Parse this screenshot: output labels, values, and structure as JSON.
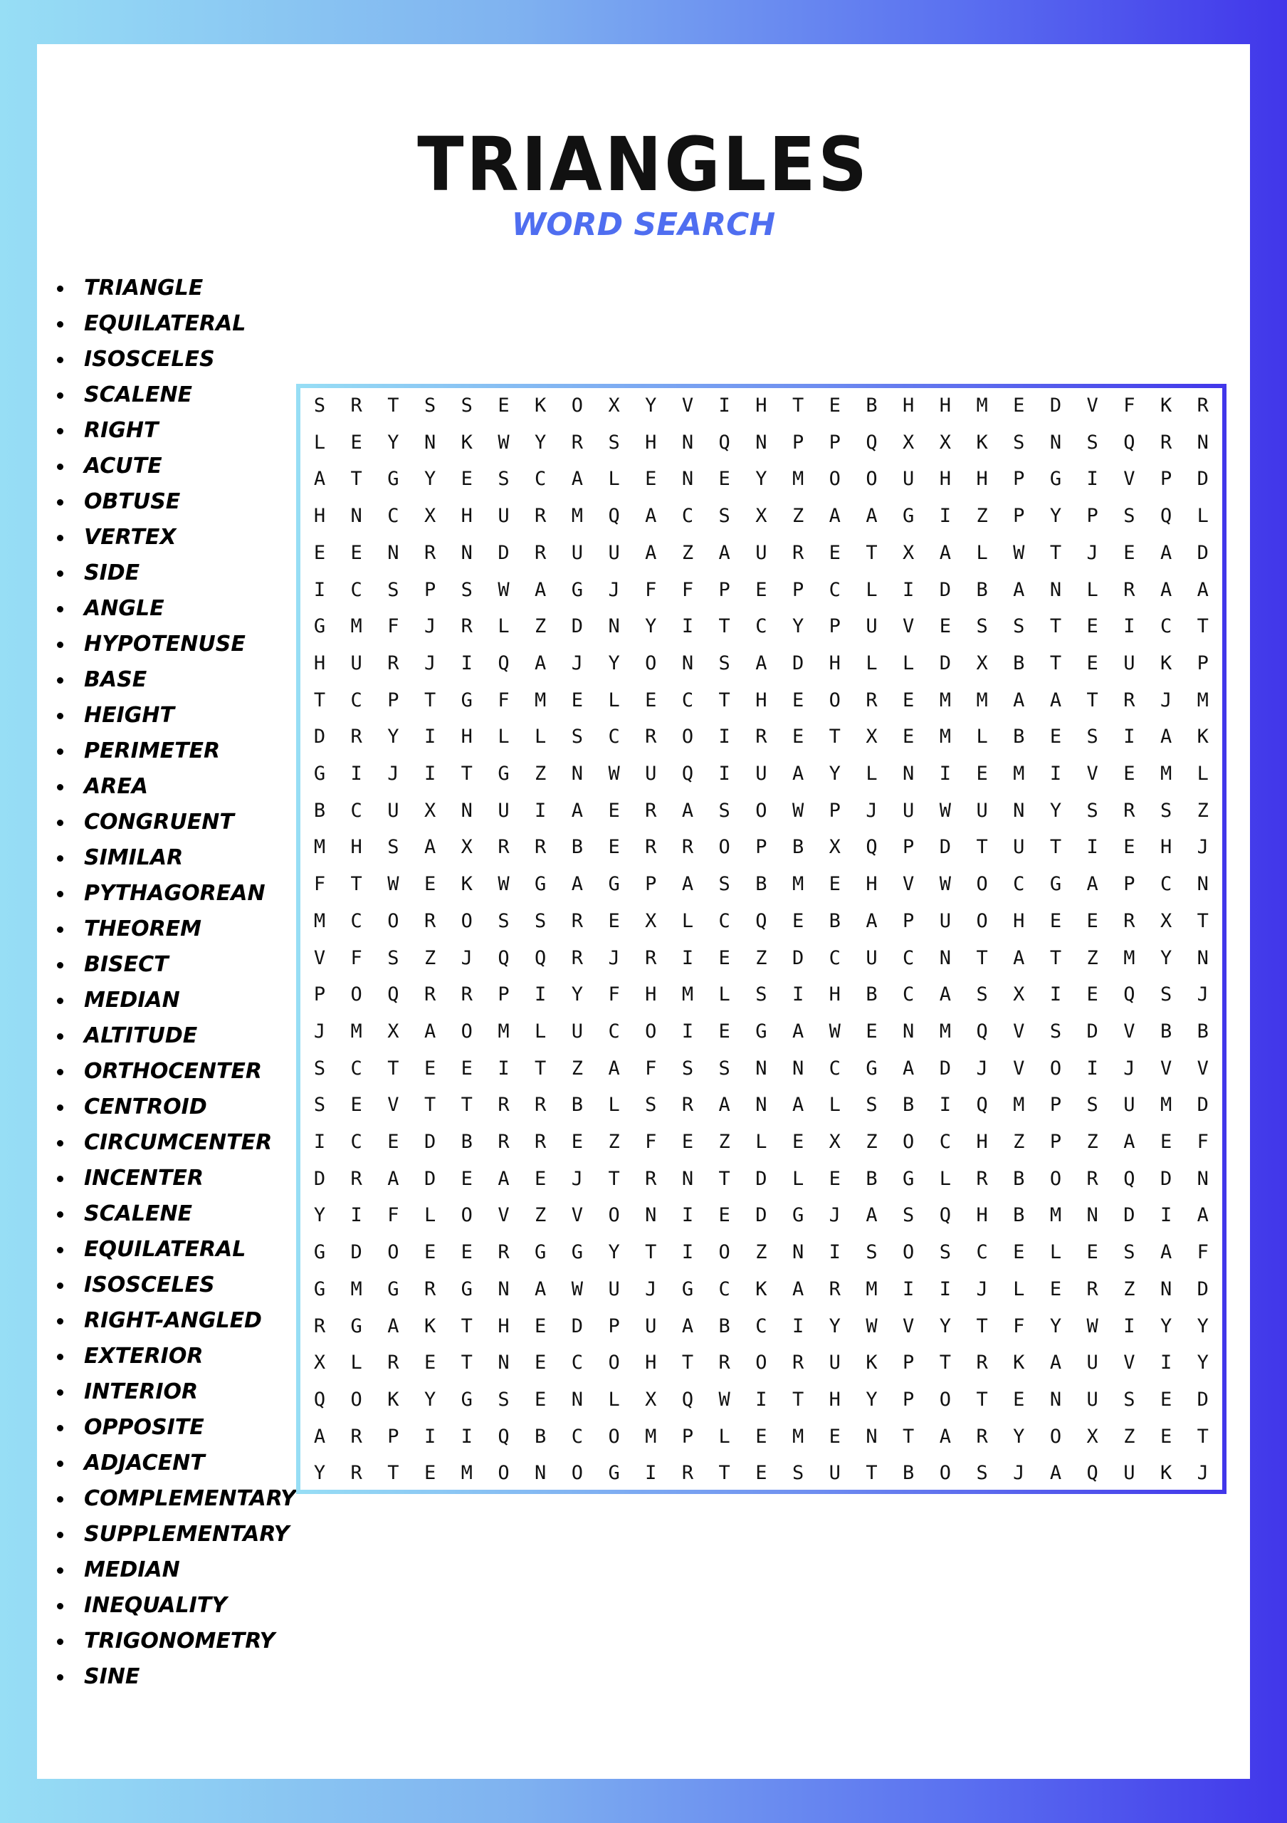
{
  "header": {
    "title": "TRIANGLES",
    "subtitle": "WORD SEARCH"
  },
  "colors": {
    "border_start": "#97def5",
    "border_end": "#4136ea",
    "subtitle": "#4f6ef0"
  },
  "word_list": [
    "TRIANGLE",
    "EQUILATERAL",
    "ISOSCELES",
    "SCALENE",
    "RIGHT",
    "ACUTE",
    "OBTUSE",
    "VERTEX",
    "SIDE",
    "ANGLE",
    "HYPOTENUSE",
    "BASE",
    "HEIGHT",
    "PERIMETER",
    "AREA",
    "CONGRUENT",
    "SIMILAR",
    "PYTHAGOREAN",
    "THEOREM",
    "BISECT",
    "MEDIAN",
    "ALTITUDE",
    "ORTHOCENTER",
    "CENTROID",
    "CIRCUMCENTER",
    "INCENTER",
    "SCALENE",
    "EQUILATERAL",
    "ISOSCELES",
    "RIGHT-ANGLED",
    "EXTERIOR",
    "INTERIOR",
    "OPPOSITE",
    "ADJACENT",
    "COMPLEMENTARY",
    "SUPPLEMENTARY",
    "MEDIAN",
    "INEQUALITY",
    "TRIGONOMETRY",
    "SINE"
  ],
  "grid_rows": [
    "SRTSSEKOXYVIHTEBHHMEDVFKR",
    "LEYNKWYRSHNQNPPQXXKSNSQRN",
    "ATGYESCALENEYMOOUHHPGIVPD",
    "HNCXHURMQACSXZAAGIZPYPSQL",
    "EENRNDRUUAZAURETXALWTJEAD",
    "ICSPSWAGJFFPEPCLIDBANLRAA",
    "GMFJRLZDNYITCYPUVESSTEICT",
    "HURJIQAJYONSADHLLDXBTEUKP",
    "TCPTGFMELECTHEOREMMAATRJM",
    "DRYIHLLSCROIRETXEMLBESIAK",
    "GIJITGZNWUQIUAYLNIEMIVEML",
    "BCUXNUIAERASOWPJUWUNYSRSZ",
    "MHSAXRRBERROPBXQPDTUTIEHJ",
    "FTWEKWGAGPASBMEHVWOCGAPCN",
    "MCOROSSREXLCQEBAPUOHEERXT",
    "VFSZJQQRJRIEZDCUCNTATZMYN",
    "POQRRPIYFHMLSIHBCASXIEQSJ",
    "JMXAOMLUCOIEGAWENMQVSDVBB",
    "SCTEEITZAFSSNNCGADJVOIJVV",
    "SEVTTRRBLSRANALSBIQMPSUMD",
    "ICEDBRREZFEZLEXZOCHZPZAEF",
    "DRADEAEJTRNTDLEBGLRBORQDN",
    "YIFLOVZVONIEDGJASQHBMNDIA",
    "GDOEERGGYTIOZNISOSCELESAF",
    "GMGRGNAWUJGCKARMIIJLERZND",
    "RGAKTHEDPUABCIYWVYTFYWIYY",
    "XLRETNECOHTRORUKPTRKAUVIY",
    "QOKYGSENLXQWITHYPOTENUSED",
    "ARPIIQBCOMPLEMENTARYOXZET",
    "YRTEMONOGIRTESUTBOSJAQUKJ"
  ]
}
